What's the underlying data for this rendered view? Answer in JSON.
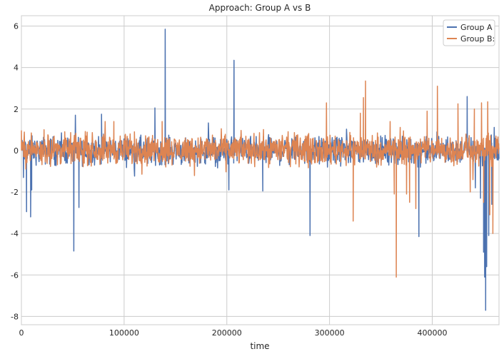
{
  "chart_data": {
    "type": "line",
    "title": "Approach: Group A vs B",
    "xlabel": "time",
    "ylabel": "",
    "xlim": [
      0,
      465000
    ],
    "ylim": [
      -8.4,
      6.5
    ],
    "xticks": [
      0,
      100000,
      200000,
      300000,
      400000
    ],
    "yticks": [
      -8,
      -6,
      -4,
      -2,
      0,
      2,
      4,
      6
    ],
    "grid": true,
    "legend": {
      "position": "top-right",
      "entries": [
        "Group A",
        "Group B:"
      ]
    },
    "baseline_noise": {
      "Group A": {
        "mean": 0.0,
        "spread": 0.45
      },
      "Group B:": {
        "mean": 0.05,
        "spread": 0.5
      }
    },
    "series": [
      {
        "name": "Group A",
        "color": "#4c72b0",
        "spikes": [
          {
            "x": 2000,
            "y": -1.3
          },
          {
            "x": 5000,
            "y": -2.95
          },
          {
            "x": 9000,
            "y": -3.2
          },
          {
            "x": 10000,
            "y": -1.9
          },
          {
            "x": 51000,
            "y": -4.85
          },
          {
            "x": 56000,
            "y": -2.75
          },
          {
            "x": 78000,
            "y": 1.75
          },
          {
            "x": 130000,
            "y": 2.05
          },
          {
            "x": 140000,
            "y": 5.85
          },
          {
            "x": 207000,
            "y": 4.35
          },
          {
            "x": 202000,
            "y": -1.9
          },
          {
            "x": 235000,
            "y": -1.95
          },
          {
            "x": 281000,
            "y": -4.1
          },
          {
            "x": 387000,
            "y": -4.15
          },
          {
            "x": 434000,
            "y": 2.6
          },
          {
            "x": 450000,
            "y": -4.9
          },
          {
            "x": 451000,
            "y": -6.1
          },
          {
            "x": 452000,
            "y": -7.7
          },
          {
            "x": 453000,
            "y": -5.6
          },
          {
            "x": 447000,
            "y": -2.3
          },
          {
            "x": 455000,
            "y": -4.1
          },
          {
            "x": 458000,
            "y": -2.6
          },
          {
            "x": 442000,
            "y": -1.8
          }
        ]
      },
      {
        "name": "Group B:",
        "color": "#dd8452",
        "spikes": [
          {
            "x": 0,
            "y": 0.95
          },
          {
            "x": 22000,
            "y": 1.0
          },
          {
            "x": 90000,
            "y": 1.4
          },
          {
            "x": 110000,
            "y": 0.9
          },
          {
            "x": 137000,
            "y": 1.4
          },
          {
            "x": 297000,
            "y": 2.3
          },
          {
            "x": 323000,
            "y": -3.4
          },
          {
            "x": 330000,
            "y": 1.8
          },
          {
            "x": 333000,
            "y": 2.55
          },
          {
            "x": 335000,
            "y": 3.35
          },
          {
            "x": 359000,
            "y": 1.4
          },
          {
            "x": 363000,
            "y": -2.1
          },
          {
            "x": 365000,
            "y": -6.1
          },
          {
            "x": 375000,
            "y": -2.1
          },
          {
            "x": 378000,
            "y": -2.5
          },
          {
            "x": 384000,
            "y": -2.8
          },
          {
            "x": 395000,
            "y": 1.9
          },
          {
            "x": 405000,
            "y": 3.1
          },
          {
            "x": 425000,
            "y": 2.25
          },
          {
            "x": 437000,
            "y": -2.0
          },
          {
            "x": 441000,
            "y": 2.0
          },
          {
            "x": 448000,
            "y": 2.3
          },
          {
            "x": 450000,
            "y": -2.5
          },
          {
            "x": 454000,
            "y": 2.35
          },
          {
            "x": 456000,
            "y": -3.1
          },
          {
            "x": 459000,
            "y": -4.0
          },
          {
            "x": 462000,
            "y": 0.7
          }
        ]
      }
    ]
  }
}
